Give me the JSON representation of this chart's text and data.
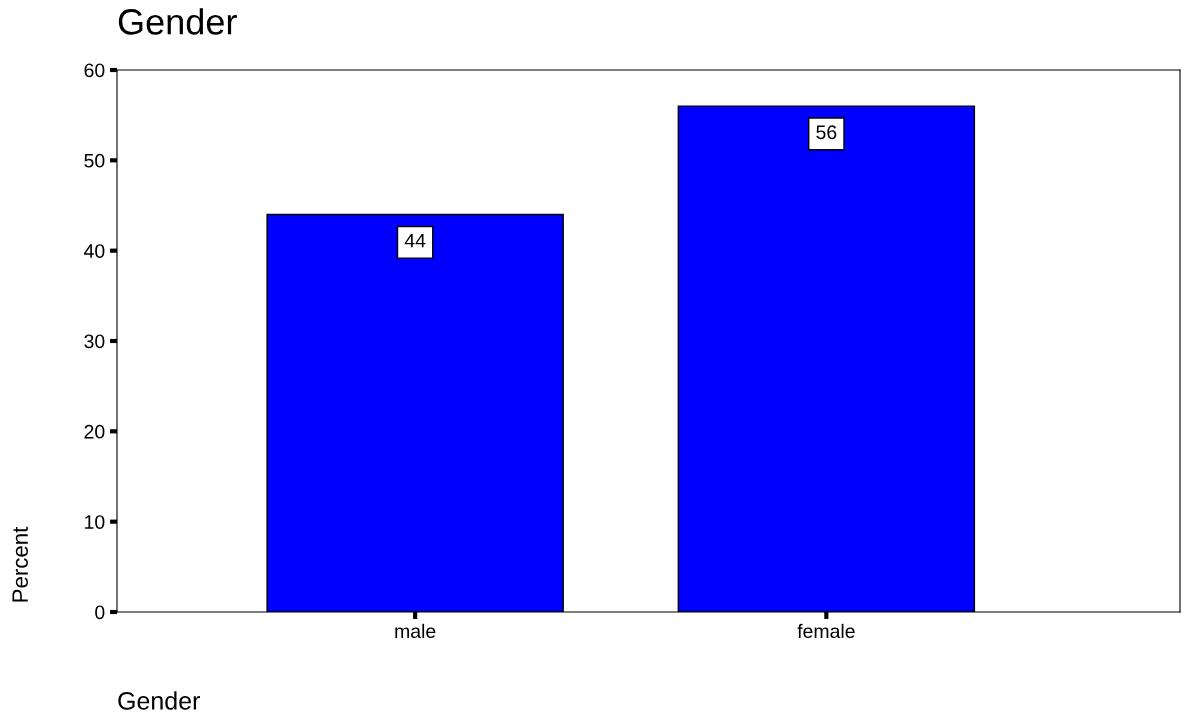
{
  "chart_data": {
    "type": "bar",
    "title": "Gender",
    "xlabel": "Gender",
    "ylabel": "Percent",
    "categories": [
      "male",
      "female"
    ],
    "values": [
      44,
      56
    ],
    "color": "#0000ff",
    "ylim": [
      0,
      60
    ],
    "yticks": [
      0,
      10,
      20,
      30,
      40,
      50,
      60
    ],
    "grid": false,
    "data_labels": true
  }
}
